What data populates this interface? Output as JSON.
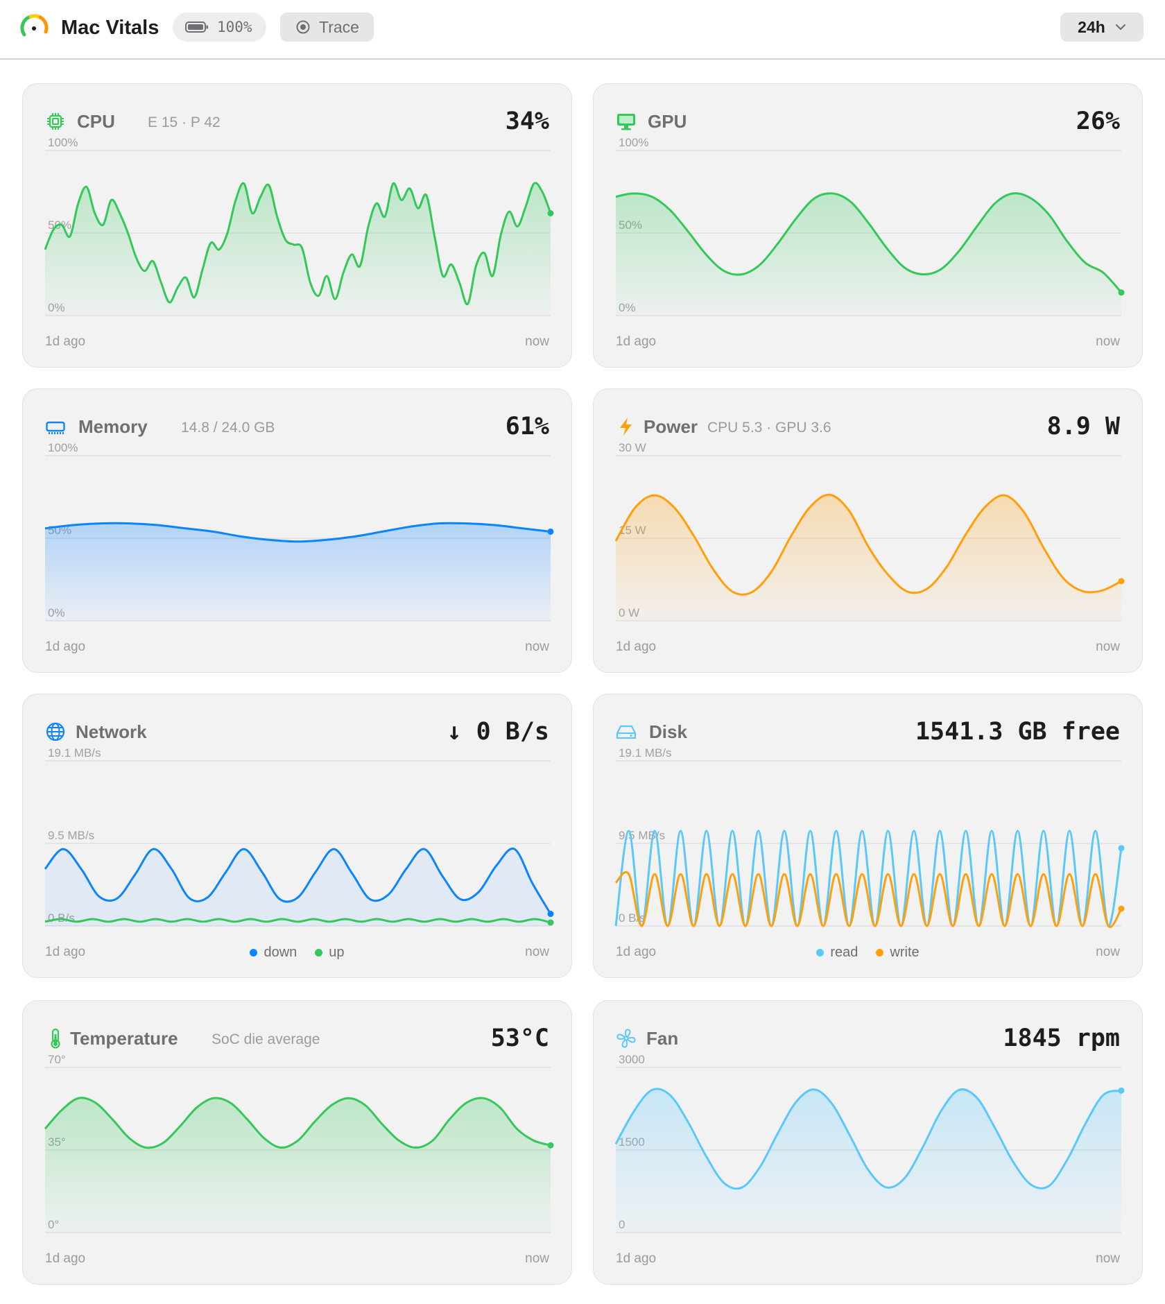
{
  "app": {
    "title": "Mac Vitals",
    "battery": "100%",
    "trace_label": "Trace",
    "range": "24h"
  },
  "colors": {
    "green": "#34c759",
    "blue": "#0a84ff",
    "orange": "#ff9f0a",
    "light_blue": "#5ac8fa"
  },
  "cards": {
    "cpu": {
      "title": "CPU",
      "subtitle": "E 15 · P 42",
      "value": "34%",
      "icon": "cpu-chip-icon",
      "x_start": "1d ago",
      "x_end": "now"
    },
    "gpu": {
      "title": "GPU",
      "subtitle": "",
      "value": "26%",
      "icon": "display-icon",
      "x_start": "1d ago",
      "x_end": "now"
    },
    "memory": {
      "title": "Memory",
      "subtitle": "14.8 / 24.0 GB",
      "value": "61%",
      "icon": "memory-icon",
      "x_start": "1d ago",
      "x_end": "now"
    },
    "power": {
      "title": "Power",
      "subtitle": "CPU 5.3 · GPU 3.6",
      "value": "8.9 W",
      "icon": "bolt-icon",
      "x_start": "1d ago",
      "x_end": "now"
    },
    "network": {
      "title": "Network",
      "subtitle": "",
      "value": "↓ 0 B/s",
      "icon": "globe-icon",
      "x_start": "1d ago",
      "x_end": "now",
      "legend": [
        "down",
        "up"
      ]
    },
    "disk": {
      "title": "Disk",
      "subtitle": "",
      "value": "1541.3 GB free",
      "icon": "drive-icon",
      "x_start": "1d ago",
      "x_end": "now",
      "legend": [
        "read",
        "write"
      ]
    },
    "temperature": {
      "title": "Temperature",
      "subtitle": "SoC die average",
      "value": "53°C",
      "icon": "thermometer-icon",
      "x_start": "1d ago",
      "x_end": "now"
    },
    "fan": {
      "title": "Fan",
      "subtitle": "",
      "value": "1845 rpm",
      "icon": "fan-icon",
      "x_start": "1d ago",
      "x_end": "now"
    }
  },
  "chart_data": [
    {
      "id": "cpu",
      "type": "area",
      "ylim": [
        0,
        100
      ],
      "yticks": [
        "100%",
        "50%",
        "0%"
      ],
      "series": [
        {
          "color": "#34c759",
          "values": [
            40,
            52,
            55,
            48,
            68,
            78,
            62,
            55,
            70,
            62,
            50,
            35,
            27,
            33,
            20,
            8,
            17,
            23,
            11,
            28,
            44,
            40,
            50,
            70,
            80,
            62,
            72,
            79,
            60,
            46,
            43,
            41,
            20,
            12,
            24,
            10,
            26,
            37,
            30,
            54,
            68,
            60,
            80,
            70,
            77,
            65,
            73,
            48,
            24,
            31,
            20,
            7,
            30,
            38,
            24,
            49,
            63,
            54,
            66,
            80,
            75,
            62
          ]
        }
      ]
    },
    {
      "id": "gpu",
      "type": "area",
      "ylim": [
        0,
        100
      ],
      "yticks": [
        "100%",
        "50%",
        "0%"
      ],
      "series": [
        {
          "color": "#34c759",
          "values": [
            72,
            74,
            72,
            64,
            51,
            37,
            27,
            25,
            31,
            44,
            59,
            71,
            74,
            69,
            56,
            41,
            29,
            25,
            28,
            39,
            54,
            68,
            74,
            71,
            61,
            45,
            32,
            26,
            14
          ]
        }
      ]
    },
    {
      "id": "memory",
      "type": "area",
      "ylim": [
        0,
        100
      ],
      "yticks": [
        "100%",
        "50%",
        "0%"
      ],
      "series": [
        {
          "color": "#0a84ff",
          "values": [
            56,
            58,
            59,
            59,
            58,
            56,
            54,
            51,
            49,
            48,
            49,
            51,
            54,
            57,
            59,
            59,
            58,
            56,
            54
          ]
        }
      ]
    },
    {
      "id": "power",
      "type": "area",
      "ylim": [
        0,
        30
      ],
      "yticks": [
        "30 W",
        "15 W",
        "0 W"
      ],
      "series": [
        {
          "color": "#ff9f0a",
          "values": [
            14.5,
            20.6,
            22.8,
            20.6,
            15.5,
            9.4,
            5.3,
            5.2,
            8.9,
            15.3,
            20.7,
            22.9,
            20.0,
            13.4,
            8.4,
            5.3,
            5.8,
            9.7,
            15.7,
            20.7,
            22.8,
            19.7,
            13.3,
            7.8,
            5.4,
            5.5,
            7.2
          ]
        }
      ]
    },
    {
      "id": "network",
      "type": "line",
      "ylim": [
        0,
        19.1
      ],
      "yticks": [
        "19.1 MB/s",
        "9.5 MB/s",
        "0 B/s"
      ],
      "series": [
        {
          "name": "down",
          "color": "#0a84ff",
          "values": [
            6.6,
            8.9,
            6.6,
            3.4,
            3.2,
            6.0,
            8.9,
            6.6,
            3.2,
            3.3,
            6.2,
            8.9,
            6.3,
            3.1,
            3.3,
            6.3,
            8.9,
            6.1,
            3.1,
            3.6,
            6.6,
            8.9,
            5.8,
            3.1,
            3.9,
            7.0,
            8.9,
            4.9,
            1.4
          ]
        },
        {
          "name": "up",
          "color": "#34c759",
          "values": [
            0.5,
            0.8,
            0.5,
            0.8,
            0.5,
            0.8,
            0.5,
            0.8,
            0.5,
            0.8,
            0.5,
            0.8,
            0.5,
            0.8,
            0.5,
            0.8,
            0.5,
            0.8,
            0.5,
            0.8,
            0.5,
            0.8,
            0.5,
            0.8,
            0.5,
            0.8,
            0.5,
            0.8,
            0.5,
            0.8,
            0.5,
            0.8,
            0.4
          ]
        }
      ]
    },
    {
      "id": "disk",
      "type": "line",
      "ylim": [
        0,
        19.1
      ],
      "yticks": [
        "19.1 MB/s",
        "9.5 MB/s",
        "0 B/s"
      ],
      "series": [
        {
          "name": "read",
          "color": "#5ac8fa",
          "values": [
            0,
            11,
            0,
            11,
            0,
            11,
            0,
            11,
            0,
            11,
            0,
            11,
            0,
            11,
            0,
            11,
            0,
            11,
            0,
            11,
            0,
            11,
            0,
            11,
            0,
            11,
            0,
            11,
            0,
            11,
            0,
            11,
            0,
            11,
            0,
            11,
            0,
            11,
            0,
            9
          ]
        },
        {
          "name": "write",
          "color": "#ff9f0a",
          "values": [
            5,
            6,
            0,
            6,
            0,
            6,
            0,
            6,
            0,
            6,
            0,
            6,
            0,
            6,
            0,
            6,
            0,
            6,
            0,
            6,
            0,
            6,
            0,
            6,
            0,
            6,
            0,
            6,
            0,
            6,
            0,
            6,
            0,
            6,
            0,
            6,
            0,
            6,
            0,
            2
          ]
        }
      ]
    },
    {
      "id": "temperature",
      "type": "area",
      "ylim": [
        0,
        70
      ],
      "yticks": [
        "70°",
        "35°",
        "0°"
      ],
      "series": [
        {
          "color": "#34c759",
          "values": [
            44,
            52,
            57,
            55,
            48,
            40,
            36,
            38,
            45,
            53,
            57,
            55,
            48,
            40,
            36,
            39,
            47,
            54,
            57,
            54,
            46,
            39,
            36,
            39,
            48,
            55,
            57,
            53,
            44,
            39,
            37
          ]
        }
      ]
    },
    {
      "id": "fan",
      "type": "area",
      "ylim": [
        0,
        3000
      ],
      "yticks": [
        "3000",
        "1500",
        "0"
      ],
      "series": [
        {
          "color": "#5ac8fa",
          "values": [
            1610,
            2200,
            2590,
            2500,
            2010,
            1390,
            900,
            820,
            1200,
            1820,
            2380,
            2600,
            2330,
            1740,
            1130,
            820,
            990,
            1550,
            2200,
            2590,
            2450,
            1900,
            1290,
            870,
            850,
            1320,
            1970,
            2500,
            2580
          ]
        }
      ]
    }
  ]
}
